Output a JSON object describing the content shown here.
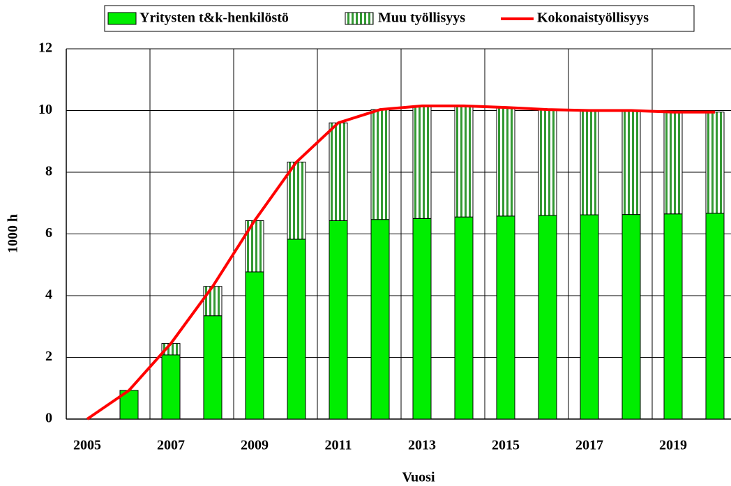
{
  "chart_data": {
    "type": "bar",
    "stacked": true,
    "x_label": "Vuosi",
    "y_label": "1000 h",
    "categories": [
      "2005",
      null,
      "2007",
      null,
      "2009",
      null,
      "2011",
      null,
      "2013",
      null,
      "2015",
      null,
      "2017",
      null,
      "2019",
      null
    ],
    "series": [
      {
        "name": "Yritysten t&k-henkilöstö",
        "type": "bar",
        "color": "#00ee00",
        "values": [
          0,
          0.93,
          2.08,
          3.35,
          4.77,
          5.83,
          6.43,
          6.47,
          6.5,
          6.55,
          6.58,
          6.6,
          6.62,
          6.63,
          6.65,
          6.67
        ]
      },
      {
        "name": "Muu työllisyys",
        "type": "bar",
        "color": "#339933",
        "values": [
          0,
          0,
          0.37,
          0.95,
          1.66,
          2.5,
          3.17,
          3.56,
          3.65,
          3.6,
          3.52,
          3.43,
          3.38,
          3.37,
          3.3,
          3.28
        ]
      },
      {
        "name": "Kokonaistyöllisyys",
        "type": "line",
        "color": "#ff0000",
        "values": [
          0,
          0.93,
          2.45,
          4.3,
          6.43,
          8.33,
          9.6,
          10.03,
          10.15,
          10.15,
          10.1,
          10.03,
          10.0,
          10.0,
          9.95,
          9.95
        ]
      }
    ],
    "ylim": [
      0,
      12
    ],
    "yticks": [
      0,
      2,
      4,
      6,
      8,
      10,
      12
    ],
    "grid": true,
    "legend": "top"
  }
}
